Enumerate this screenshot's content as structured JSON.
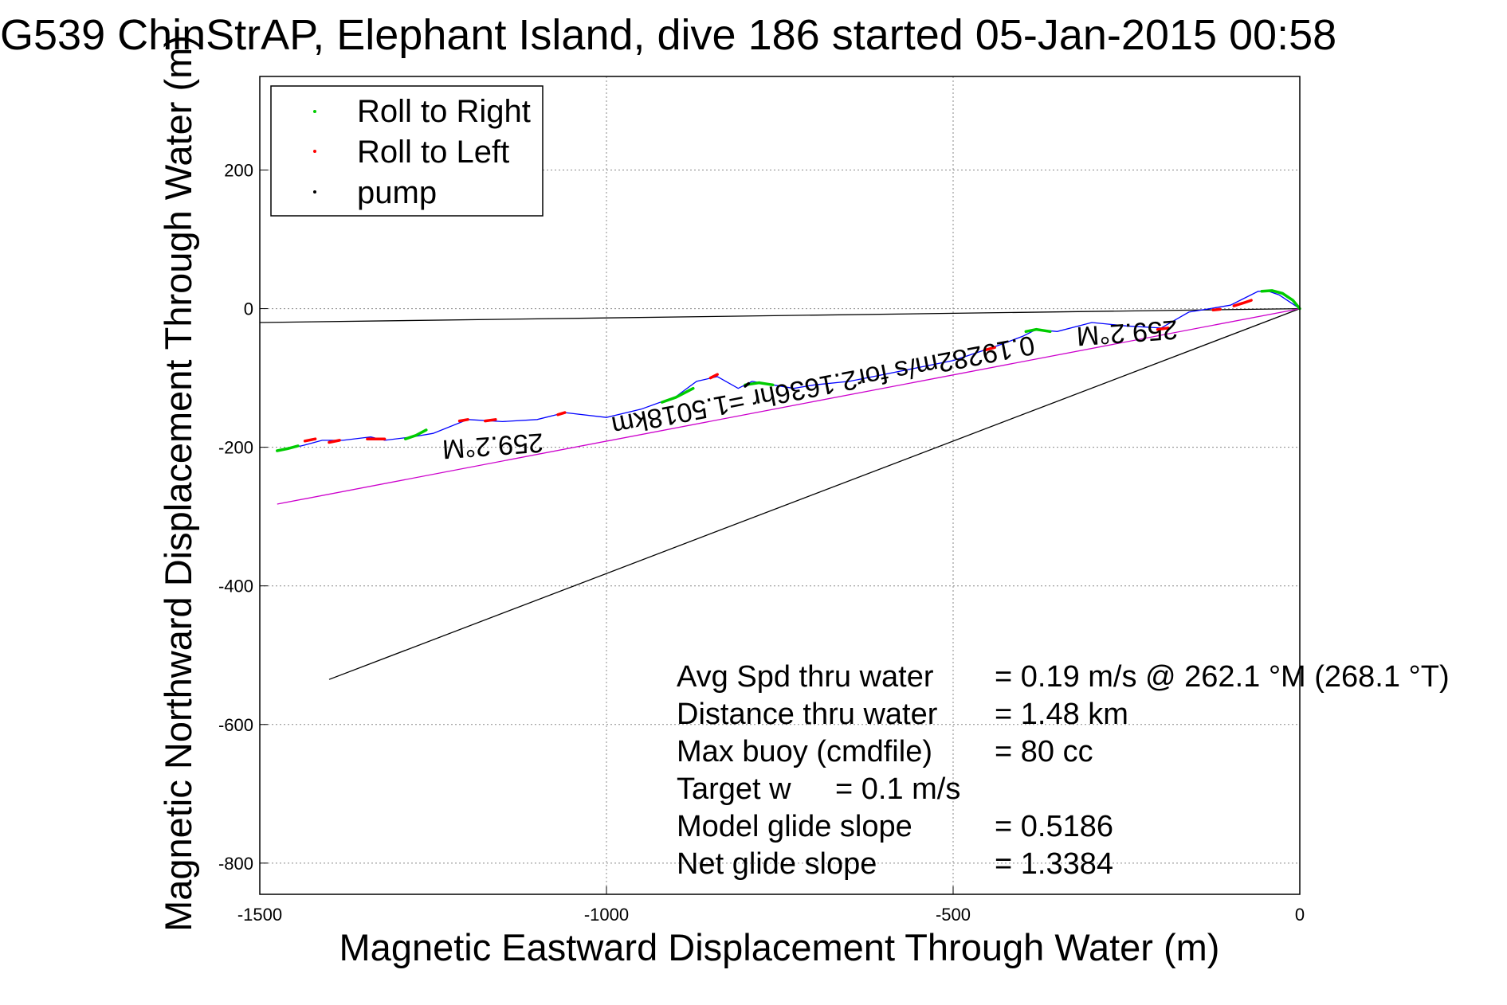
{
  "chart_data": {
    "type": "scatter",
    "title": "G539 ChinStrAP, Elephant Island, dive 186 started 05-Jan-2015 00:58",
    "xlabel": "Magnetic Eastward Displacement Through Water (m)",
    "ylabel": "Magnetic Northward Displacement Through Water (m)",
    "xlim": [
      -1500,
      0
    ],
    "ylim": [
      -845,
      335
    ],
    "grid": true,
    "x_ticks": [
      {
        "value": -1500,
        "label": "-1500"
      },
      {
        "value": -1000,
        "label": "-1000"
      },
      {
        "value": -500,
        "label": "-500"
      },
      {
        "value": 0,
        "label": "0"
      }
    ],
    "y_ticks": [
      {
        "value": 200,
        "label": "200"
      },
      {
        "value": 0,
        "label": "0"
      },
      {
        "value": -200,
        "label": "-200"
      },
      {
        "value": -400,
        "label": "-400"
      },
      {
        "value": -600,
        "label": "-600"
      },
      {
        "value": -800,
        "label": "-800"
      }
    ],
    "legend": {
      "position": "top-left",
      "entries": [
        {
          "label": "Roll to Right",
          "color": "#00cc00"
        },
        {
          "label": "Roll to Left",
          "color": "#ff0000"
        },
        {
          "label": "pump",
          "color": "#000000"
        }
      ]
    },
    "track": {
      "color": "#0000ff",
      "x": [
        0,
        -15,
        -30,
        -45,
        -60,
        -80,
        -100,
        -130,
        -160,
        -200,
        -250,
        -300,
        -350,
        -380,
        -400,
        -440,
        -500,
        -550,
        -600,
        -650,
        -700,
        -730,
        -760,
        -790,
        -810,
        -840,
        -870,
        -900,
        -950,
        -1000,
        -1060,
        -1100,
        -1150,
        -1200,
        -1250,
        -1280,
        -1320,
        -1340,
        -1380,
        -1410,
        -1440,
        -1470
      ],
      "y": [
        0,
        10,
        20,
        25,
        25,
        15,
        5,
        0,
        -5,
        -28,
        -25,
        -20,
        -33,
        -30,
        -40,
        -55,
        -75,
        -85,
        -95,
        -105,
        -110,
        -115,
        -110,
        -105,
        -115,
        -98,
        -105,
        -127,
        -145,
        -157,
        -150,
        -160,
        -163,
        -160,
        -180,
        -185,
        -190,
        -185,
        -190,
        -190,
        -198,
        -203
      ]
    },
    "segments": {
      "roll_right": [
        {
          "x": [
            0,
            -10,
            -25,
            -40,
            -55
          ],
          "y": [
            0,
            12,
            22,
            26,
            25
          ]
        },
        {
          "x": [
            -360,
            -380,
            -395
          ],
          "y": [
            -33,
            -30,
            -33
          ]
        },
        {
          "x": [
            -760,
            -780,
            -800
          ],
          "y": [
            -110,
            -107,
            -110
          ]
        },
        {
          "x": [
            -875,
            -900,
            -920
          ],
          "y": [
            -115,
            -128,
            -135
          ]
        },
        {
          "x": [
            -1260,
            -1275,
            -1290
          ],
          "y": [
            -175,
            -183,
            -188
          ]
        },
        {
          "x": [
            -1445,
            -1460,
            -1475
          ],
          "y": [
            -198,
            -202,
            -205
          ]
        }
      ],
      "roll_left": [
        {
          "x": [
            -70,
            -82,
            -95
          ],
          "y": [
            12,
            8,
            4
          ]
        },
        {
          "x": [
            -115,
            -125
          ],
          "y": [
            -1,
            -2
          ]
        },
        {
          "x": [
            -190,
            -205
          ],
          "y": [
            -28,
            -30
          ]
        },
        {
          "x": [
            -440,
            -455
          ],
          "y": [
            -56,
            -60
          ]
        },
        {
          "x": [
            -840,
            -850
          ],
          "y": [
            -95,
            -100
          ]
        },
        {
          "x": [
            -1060,
            -1070
          ],
          "y": [
            -150,
            -153
          ]
        },
        {
          "x": [
            -1160,
            -1175
          ],
          "y": [
            -160,
            -162
          ]
        },
        {
          "x": [
            -1200,
            -1212
          ],
          "y": [
            -160,
            -162
          ]
        },
        {
          "x": [
            -1320,
            -1345
          ],
          "y": [
            -188,
            -188
          ]
        },
        {
          "x": [
            -1385,
            -1400
          ],
          "y": [
            -190,
            -193
          ]
        },
        {
          "x": [
            -1420,
            -1435
          ],
          "y": [
            -188,
            -191
          ]
        }
      ],
      "pump": [
        {
          "x": [
            -795,
            -800
          ],
          "y": [
            -108,
            -112
          ]
        }
      ]
    },
    "reference_lines": [
      {
        "color": "#000000",
        "x": [
          0,
          -1500
        ],
        "y": [
          0,
          -20
        ]
      },
      {
        "color": "#000000",
        "x": [
          0,
          -1400
        ],
        "y": [
          0,
          -535
        ]
      },
      {
        "color": "#cc00cc",
        "x": [
          0,
          -1475
        ],
        "y": [
          0,
          -282
        ]
      }
    ],
    "rotated_labels": [
      {
        "text": "259.2°M",
        "x": -1165,
        "y": -185,
        "angle": 176
      },
      {
        "text": "259.2°M",
        "x": -250,
        "y": -22,
        "angle": 176
      },
      {
        "text": "0.19282m/s for2.1636hr =1.5018km",
        "x": -690,
        "y": -98,
        "angle": 169
      }
    ],
    "annotations": [
      {
        "label": "Avg Spd thru water",
        "value": "=  0.19 m/s @ 262.1 °M (268.1 °T)"
      },
      {
        "label": "Distance thru water",
        "value": "=  1.48 km"
      },
      {
        "label": "Max buoy (cmdfile)",
        "value": "= 80 cc"
      },
      {
        "label": "Target w",
        "value": "= 0.1 m/s"
      },
      {
        "label": "Model glide slope",
        "value": "= 0.5186"
      },
      {
        "label": "Net glide slope",
        "value": "= 1.3384"
      }
    ]
  }
}
